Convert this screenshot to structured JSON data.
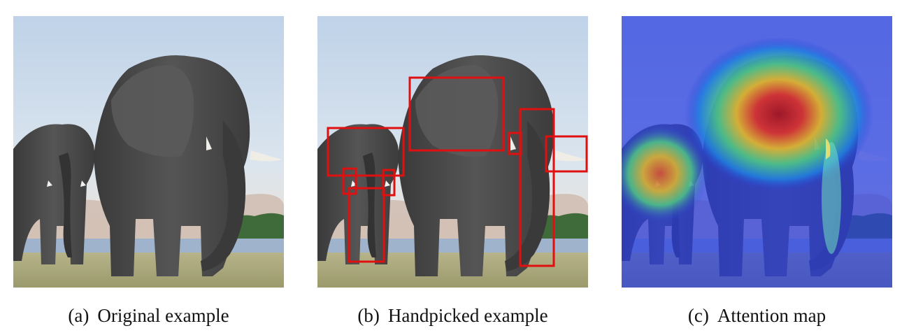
{
  "panels": [
    {
      "tag": "(a)",
      "caption": "Original example"
    },
    {
      "tag": "(b)",
      "caption": "Handpicked example"
    },
    {
      "tag": "(c)",
      "caption": "Attention map"
    }
  ],
  "colors": {
    "box_stroke": "#e01010",
    "sky": "#c9d8e8",
    "elephant": "#4a4a4a"
  }
}
